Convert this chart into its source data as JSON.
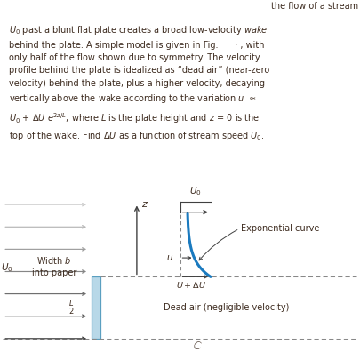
{
  "bg_color": "#ffffff",
  "text_color": "#3d2b1f",
  "plate_color": "#b8d8e8",
  "plate_edge_color": "#5a9fc0",
  "curve_color": "#1a7abf",
  "dark_color": "#404040",
  "gray_color": "#888888",
  "dashed_color": "#888888",
  "fig_width": 4.05,
  "fig_height": 3.96,
  "dpi": 100,
  "top_right_text": "the flow of a stream",
  "para_line1": "$U_0$ past a blunt flat plate creates a broad low-velocity $\\it{wake}$",
  "para_line2": "behind the plate. A simple model is given in Fig.      · , with",
  "para_line3": "only half of the flow shown due to symmetry. The velocity",
  "para_line4": "profile behind the plate is idealized as “dead air” (near-zero",
  "para_line5": "velocity) behind the plate, plus a higher velocity, decaying",
  "para_line6": "vertically above the wake according to the variation $u$ $\\approx$",
  "para_line7": "$U_0$ + $\\Delta U$ $e^{2z/L}$, where $L$ is the plate height and $z$ = 0 is the",
  "para_line8": "top of the wake. Find $\\Delta U$ as a function of stream speed $U_0$.",
  "label_U0_left": "$U_0$",
  "label_width_b": "Width $b$",
  "label_into_paper": "into paper",
  "label_z": "$z$",
  "label_u": "$u$",
  "label_U0_top": "$U_0$",
  "label_UdeltaU": "$U+\\Delta U$",
  "label_exp_curve": "Exponential curve",
  "label_dead_air": "Dead air (negligible velocity)",
  "label_L2": "$\\frac{L}{2}$",
  "label_centerline": "$\\mathbb{C}$"
}
